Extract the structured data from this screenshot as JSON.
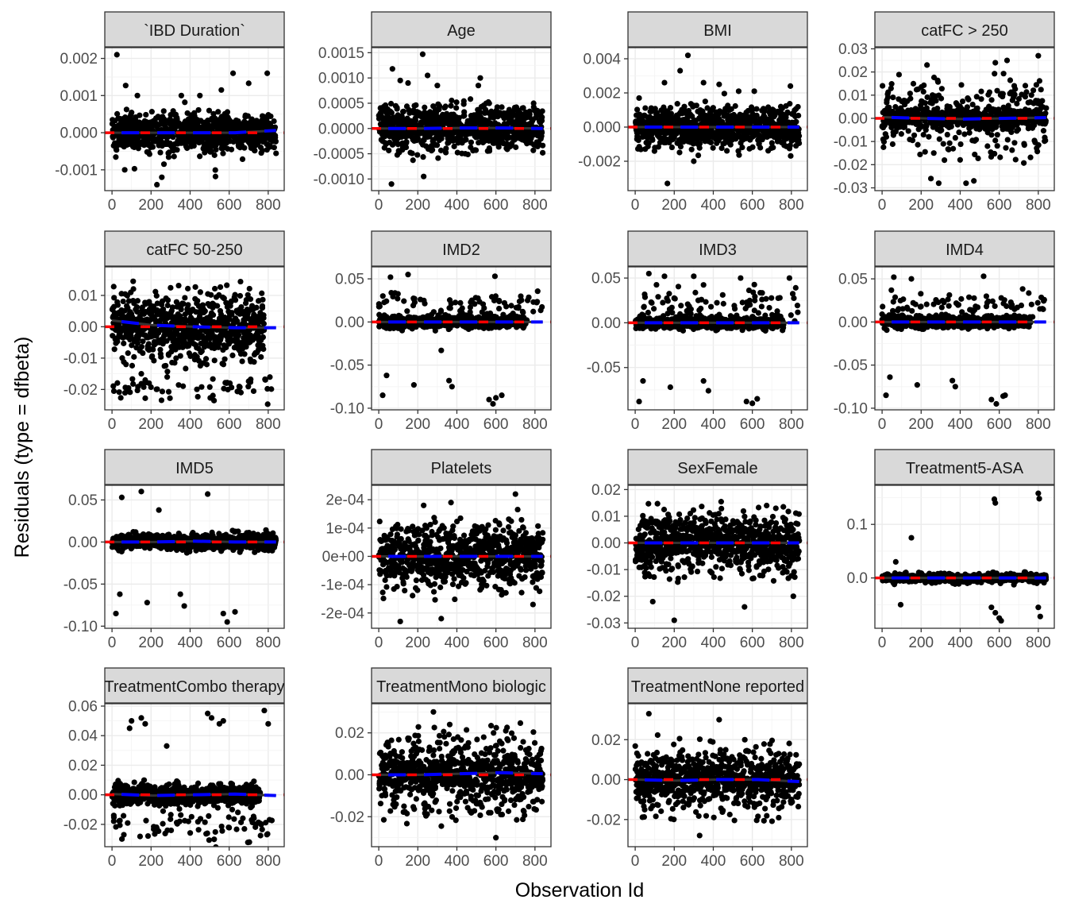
{
  "chart_data": {
    "type": "scatter",
    "title": "",
    "xlabel": "Observation Id",
    "ylabel": "Residuals (type = dfbeta)",
    "xlim": [
      -37,
      882
    ],
    "x_ticks": [
      0,
      200,
      400,
      600,
      800
    ],
    "n_points_per_panel": 830,
    "grid": true,
    "reference_line": {
      "y": 0,
      "color": "#ff0000",
      "style": "dashed"
    },
    "smooth_line": {
      "color": "#0000ff",
      "style": "dashed"
    },
    "point_color": "#000000",
    "panels": [
      {
        "title": "`IBD Duration`",
        "ylim": [
          -0.00156,
          0.00229
        ],
        "y_ticks": [
          0.002,
          0.001,
          0,
          -0.001
        ],
        "y_tick_labels": [
          "0.002",
          "0.001",
          "0.000",
          "-0.001"
        ],
        "bulk_sd": 0.00025,
        "wide": 0.0006,
        "wide_frac": 0.15,
        "clusters": [],
        "smooth": [
          0,
          0,
          0,
          0,
          6e-05
        ],
        "outliers": [
          [
            25,
            0.0021
          ],
          [
            70,
            0.00127
          ],
          [
            620,
            0.0016
          ],
          [
            795,
            0.0016
          ],
          [
            700,
            0.00133
          ],
          [
            230,
            -0.0014
          ],
          [
            255,
            -0.0012
          ],
          [
            530,
            -0.00118
          ],
          [
            65,
            -0.001
          ],
          [
            115,
            -0.00097
          ],
          [
            560,
            0.00115
          ],
          [
            130,
            0.001
          ],
          [
            355,
            0.001
          ],
          [
            450,
            0.001
          ]
        ]
      },
      {
        "title": "Age",
        "ylim": [
          -0.00123,
          0.0016
        ],
        "y_ticks": [
          0.0015,
          0.001,
          0.0005,
          0,
          -0.0005,
          -0.001
        ],
        "y_tick_labels": [
          "0.0015",
          "0.0010",
          "0.0005",
          "0.0000",
          "-0.0005",
          "-0.0010"
        ],
        "bulk_sd": 0.0002,
        "wide": 0.0006,
        "wide_frac": 0.2,
        "clusters": [],
        "smooth": [
          0,
          0,
          1e-05,
          1e-05,
          0
        ],
        "outliers": [
          [
            225,
            0.00147
          ],
          [
            70,
            0.00118
          ],
          [
            250,
            0.00105
          ],
          [
            65,
            -0.0011
          ],
          [
            230,
            -0.00095
          ],
          [
            110,
            0.00095
          ],
          [
            300,
            0.00085
          ],
          [
            510,
            0.00085
          ],
          [
            520,
            0.001
          ],
          [
            150,
            0.0009
          ]
        ]
      },
      {
        "title": "BMI",
        "ylim": [
          -0.00372,
          0.00465
        ],
        "y_ticks": [
          0.004,
          0.002,
          0,
          -0.002
        ],
        "y_tick_labels": [
          "0.004",
          "0.002",
          "0.000",
          "-0.002"
        ],
        "bulk_sd": 0.00055,
        "wide": 0.0015,
        "wide_frac": 0.2,
        "clusters": [],
        "smooth": [
          0,
          0,
          0,
          0,
          0
        ],
        "outliers": [
          [
            270,
            0.0042
          ],
          [
            230,
            0.0033
          ],
          [
            165,
            -0.0033
          ],
          [
            150,
            0.0026
          ],
          [
            350,
            0.0026
          ],
          [
            795,
            0.0024
          ],
          [
            430,
            0.0025
          ],
          [
            530,
            0.0021
          ],
          [
            610,
            0.0021
          ],
          [
            300,
            -0.002
          ],
          [
            20,
            0.0017
          ]
        ]
      },
      {
        "title": "catFC > 250",
        "ylim": [
          -0.0312,
          0.0305
        ],
        "y_ticks": [
          0.03,
          0.02,
          0.01,
          0,
          -0.01,
          -0.02,
          -0.03
        ],
        "y_tick_labels": [
          "0.03",
          "0.02",
          "0.01",
          "0.00",
          "-0.01",
          "-0.02",
          "-0.03"
        ],
        "bulk_sd": 0.002,
        "wide": 0.021,
        "wide_frac": 0.28,
        "clusters": [],
        "smooth": [
          0.0005,
          0,
          -0.0003,
          0,
          0.0003
        ],
        "outliers": [
          [
            800,
            0.027
          ],
          [
            640,
            0.025
          ],
          [
            580,
            0.024
          ],
          [
            230,
            0.023
          ],
          [
            290,
            -0.028
          ],
          [
            430,
            -0.028
          ],
          [
            470,
            -0.027
          ],
          [
            250,
            -0.026
          ]
        ]
      },
      {
        "title": "catFC 50-250",
        "ylim": [
          -0.0265,
          0.0191
        ],
        "y_ticks": [
          0.01,
          0,
          -0.01,
          -0.02
        ],
        "y_tick_labels": [
          "0.01",
          "0.00",
          "-0.01",
          "-0.02"
        ],
        "bulk_sd": 0.004,
        "wide": 0.015,
        "wide_frac": 0.3,
        "clusters": [
          {
            "y": -0.02,
            "sd": 0.002,
            "count": 60
          }
        ],
        "smooth": [
          0.002,
          0.0005,
          0,
          -0.0003,
          -0.0003
        ],
        "outliers": [
          [
            150,
            -0.015
          ],
          [
            170,
            -0.017
          ],
          [
            190,
            -0.018
          ]
        ]
      },
      {
        "title": "IMD2",
        "ylim": [
          -0.1019,
          0.0639
        ],
        "y_ticks": [
          0.05,
          0,
          -0.05,
          -0.1
        ],
        "y_tick_labels": [
          "0.05",
          "0.00",
          "-0.05",
          "-0.10"
        ],
        "bulk_sd": 0.003,
        "wide": 0.01,
        "wide_frac": 0.1,
        "clusters": [
          {
            "y": 0.02,
            "sd": 0.008,
            "count": 80
          }
        ],
        "smooth": [
          0,
          0,
          0,
          0,
          0
        ],
        "outliers": [
          [
            20,
            -0.085
          ],
          [
            40,
            -0.062
          ],
          [
            180,
            -0.073
          ],
          [
            360,
            -0.068
          ],
          [
            375,
            -0.075
          ],
          [
            565,
            -0.09
          ],
          [
            585,
            -0.095
          ],
          [
            630,
            -0.085
          ],
          [
            600,
            -0.088
          ],
          [
            60,
            0.052
          ],
          [
            150,
            0.055
          ],
          [
            595,
            0.053
          ],
          [
            320,
            -0.033
          ]
        ]
      },
      {
        "title": "IMD3",
        "ylim": [
          -0.0973,
          0.0625
        ],
        "y_ticks": [
          0.05,
          0,
          -0.05
        ],
        "y_tick_labels": [
          "0.05",
          "0.00",
          "-0.05"
        ],
        "bulk_sd": 0.003,
        "wide": 0.01,
        "wide_frac": 0.1,
        "clusters": [
          {
            "y": 0.02,
            "sd": 0.01,
            "count": 80
          }
        ],
        "smooth": [
          0,
          0,
          0,
          0,
          0
        ],
        "outliers": [
          [
            20,
            -0.088
          ],
          [
            40,
            -0.065
          ],
          [
            180,
            -0.072
          ],
          [
            350,
            -0.065
          ],
          [
            375,
            -0.076
          ],
          [
            570,
            -0.088
          ],
          [
            625,
            -0.085
          ],
          [
            600,
            -0.09
          ],
          [
            70,
            0.055
          ],
          [
            150,
            0.052
          ],
          [
            790,
            0.05
          ],
          [
            540,
            0.05
          ],
          [
            300,
            0.052
          ]
        ]
      },
      {
        "title": "IMD4",
        "ylim": [
          -0.1019,
          0.0639
        ],
        "y_ticks": [
          0.05,
          0,
          -0.05,
          -0.1
        ],
        "y_tick_labels": [
          "0.05",
          "0.00",
          "-0.05",
          "-0.10"
        ],
        "bulk_sd": 0.003,
        "wide": 0.01,
        "wide_frac": 0.1,
        "clusters": [
          {
            "y": 0.018,
            "sd": 0.008,
            "count": 80
          }
        ],
        "smooth": [
          0,
          0,
          0,
          0,
          0
        ],
        "outliers": [
          [
            20,
            -0.085
          ],
          [
            40,
            -0.064
          ],
          [
            180,
            -0.073
          ],
          [
            360,
            -0.068
          ],
          [
            375,
            -0.075
          ],
          [
            560,
            -0.09
          ],
          [
            585,
            -0.095
          ],
          [
            630,
            -0.085
          ],
          [
            60,
            0.052
          ],
          [
            150,
            0.05
          ],
          [
            520,
            0.053
          ],
          [
            620,
            -0.086
          ]
        ]
      },
      {
        "title": "IMD5",
        "ylim": [
          -0.1025,
          0.0674
        ],
        "y_ticks": [
          0.05,
          0,
          -0.05,
          -0.1
        ],
        "y_tick_labels": [
          "0.05",
          "0.00",
          "-0.05",
          "-0.10"
        ],
        "bulk_sd": 0.004,
        "wide": 0.015,
        "wide_frac": 0.15,
        "clusters": [],
        "smooth": [
          0,
          0,
          0.001,
          0,
          0
        ],
        "outliers": [
          [
            20,
            -0.085
          ],
          [
            40,
            -0.062
          ],
          [
            180,
            -0.072
          ],
          [
            350,
            -0.062
          ],
          [
            370,
            -0.076
          ],
          [
            570,
            -0.085
          ],
          [
            590,
            -0.095
          ],
          [
            630,
            -0.083
          ],
          [
            150,
            0.06
          ],
          [
            490,
            0.057
          ],
          [
            50,
            0.053
          ],
          [
            240,
            0.038
          ]
        ]
      },
      {
        "title": "Platelets",
        "ylim": [
          -0.000254,
          0.000251
        ],
        "y_ticks": [
          0.0002,
          0.0001,
          0,
          -0.0001,
          -0.0002
        ],
        "y_tick_labels": [
          "2e-04",
          "1e-04",
          "0e+00",
          "-1e-04",
          "-2e-04"
        ],
        "bulk_sd": 5e-05,
        "wide": 0.00015,
        "wide_frac": 0.25,
        "clusters": [],
        "smooth": [
          0,
          0,
          0,
          0,
          0
        ],
        "outliers": [
          [
            700,
            0.00022
          ],
          [
            370,
            0.00019
          ],
          [
            230,
            0.00018
          ],
          [
            110,
            -0.00023
          ],
          [
            320,
            -0.00022
          ],
          [
            790,
            -0.00017
          ]
        ]
      },
      {
        "title": "SexFemale",
        "ylim": [
          -0.032,
          0.0216
        ],
        "y_ticks": [
          0.02,
          0.01,
          0,
          -0.01,
          -0.02,
          -0.03
        ],
        "y_tick_labels": [
          "0.02",
          "0.01",
          "0.00",
          "-0.01",
          "-0.02",
          "-0.03"
        ],
        "bulk_sd": 0.004,
        "wide": 0.016,
        "wide_frac": 0.3,
        "clusters": [],
        "smooth": [
          0,
          0,
          0,
          0,
          0
        ],
        "outliers": [
          [
            200,
            -0.029
          ],
          [
            560,
            -0.024
          ],
          [
            90,
            -0.022
          ],
          [
            810,
            -0.02
          ]
        ]
      },
      {
        "title": "Treatment5-ASA",
        "ylim": [
          -0.094,
          0.173
        ],
        "y_ticks": [
          0.1,
          0
        ],
        "y_tick_labels": [
          "0.1",
          "0.0"
        ],
        "bulk_sd": 0.003,
        "wide": 0.015,
        "wide_frac": 0.1,
        "clusters": [],
        "smooth": [
          0,
          0,
          0,
          0,
          0
        ],
        "outliers": [
          [
            575,
            0.147
          ],
          [
            580,
            0.14
          ],
          [
            800,
            0.158
          ],
          [
            805,
            0.148
          ],
          [
            150,
            0.075
          ],
          [
            810,
            -0.072
          ],
          [
            800,
            -0.055
          ],
          [
            600,
            -0.075
          ],
          [
            610,
            -0.08
          ],
          [
            560,
            -0.055
          ],
          [
            580,
            -0.065
          ],
          [
            95,
            -0.05
          ],
          [
            70,
            0.03
          ]
        ]
      },
      {
        "title": "TreatmentCombo therapy",
        "ylim": [
          -0.0351,
          0.0616
        ],
        "y_ticks": [
          0.06,
          0.04,
          0.02,
          0,
          -0.02
        ],
        "y_tick_labels": [
          "0.06",
          "0.04",
          "0.02",
          "0.00",
          "-0.02"
        ],
        "bulk_sd": 0.003,
        "wide": 0.01,
        "wide_frac": 0.1,
        "clusters": [
          {
            "y": -0.02,
            "sd": 0.006,
            "count": 80
          }
        ],
        "smooth": [
          0.0005,
          -0.0005,
          0,
          0.0005,
          -0.0005
        ],
        "outliers": [
          [
            780,
            0.057
          ],
          [
            800,
            0.048
          ],
          [
            490,
            0.055
          ],
          [
            510,
            0.052
          ],
          [
            570,
            0.05
          ],
          [
            100,
            0.05
          ],
          [
            150,
            0.052
          ],
          [
            170,
            0.048
          ],
          [
            280,
            0.033
          ],
          [
            550,
            0.048
          ],
          [
            90,
            0.045
          ]
        ]
      },
      {
        "title": "TreatmentMono biologic",
        "ylim": [
          -0.0343,
          0.0339
        ],
        "y_ticks": [
          0.02,
          0,
          -0.02
        ],
        "y_tick_labels": [
          "0.02",
          "0.00",
          "-0.02"
        ],
        "bulk_sd": 0.005,
        "wide": 0.026,
        "wide_frac": 0.33,
        "clusters": [],
        "smooth": [
          0,
          0,
          0.0005,
          0.001,
          0.0005
        ],
        "outliers": [
          [
            280,
            0.03
          ],
          [
            600,
            -0.03
          ]
        ]
      },
      {
        "title": "TreatmentNone reported",
        "ylim": [
          -0.0336,
          0.038
        ],
        "y_ticks": [
          0.02,
          0,
          -0.02
        ],
        "y_tick_labels": [
          "0.02",
          "0.00",
          "-0.02"
        ],
        "bulk_sd": 0.005,
        "wide": 0.024,
        "wide_frac": 0.3,
        "clusters": [],
        "smooth": [
          0,
          -0.0005,
          0,
          0,
          -0.001
        ],
        "outliers": [
          [
            70,
            0.033
          ],
          [
            330,
            -0.028
          ],
          [
            430,
            0.03
          ]
        ]
      }
    ]
  }
}
